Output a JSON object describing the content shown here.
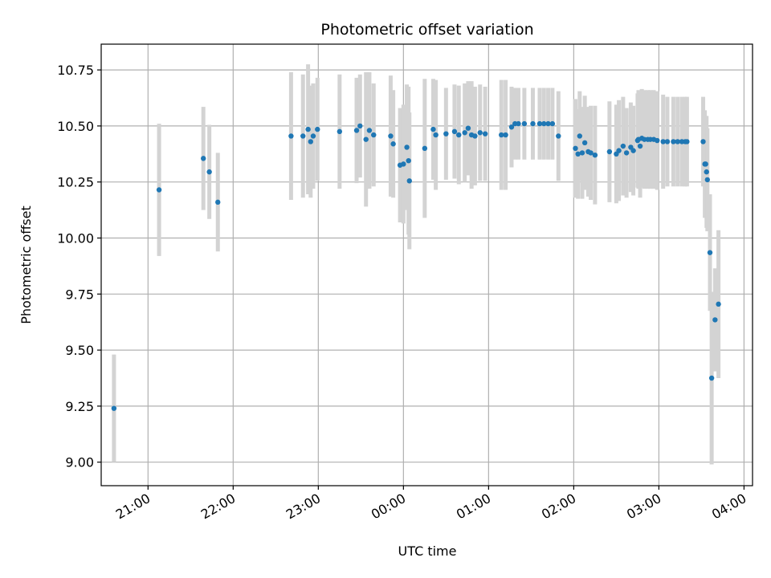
{
  "chart_data": {
    "type": "scatter",
    "title": "Photometric offset variation",
    "xlabel": "UTC time",
    "ylabel": "Photometric offset",
    "grid": true,
    "x_unit": "hours since 20:00 UTC",
    "xlim": [
      0.45,
      8.1
    ],
    "ylim": [
      8.895,
      10.865
    ],
    "x_ticks": [
      {
        "value": 1.0,
        "label": "21:00"
      },
      {
        "value": 2.0,
        "label": "22:00"
      },
      {
        "value": 3.0,
        "label": "23:00"
      },
      {
        "value": 4.0,
        "label": "00:00"
      },
      {
        "value": 5.0,
        "label": "01:00"
      },
      {
        "value": 6.0,
        "label": "02:00"
      },
      {
        "value": 7.0,
        "label": "03:00"
      },
      {
        "value": 8.0,
        "label": "04:00"
      }
    ],
    "y_ticks": [
      {
        "value": 9.0,
        "label": "9.00"
      },
      {
        "value": 9.25,
        "label": "9.25"
      },
      {
        "value": 9.5,
        "label": "9.50"
      },
      {
        "value": 9.75,
        "label": "9.75"
      },
      {
        "value": 10.0,
        "label": "10.00"
      },
      {
        "value": 10.25,
        "label": "10.25"
      },
      {
        "value": 10.5,
        "label": "10.50"
      },
      {
        "value": 10.75,
        "label": "10.75"
      }
    ],
    "colors": {
      "points": "#1f77b4",
      "errorbars": "#d3d3d3",
      "grid": "#b0b0b0"
    },
    "series": [
      {
        "name": "offset",
        "points": [
          [
            0.6,
            9.24,
            0.24
          ],
          [
            1.13,
            10.215,
            0.295
          ],
          [
            1.65,
            10.355,
            0.23
          ],
          [
            1.72,
            10.295,
            0.21
          ],
          [
            1.82,
            10.16,
            0.22
          ],
          [
            2.68,
            10.455,
            0.285
          ],
          [
            2.82,
            10.455,
            0.275
          ],
          [
            2.88,
            10.485,
            0.29
          ],
          [
            2.91,
            10.43,
            0.25
          ],
          [
            2.94,
            10.455,
            0.235
          ],
          [
            2.99,
            10.485,
            0.23
          ],
          [
            3.25,
            10.475,
            0.255
          ],
          [
            3.45,
            10.48,
            0.235
          ],
          [
            3.49,
            10.5,
            0.23
          ],
          [
            3.56,
            10.44,
            0.3
          ],
          [
            3.6,
            10.48,
            0.26
          ],
          [
            3.65,
            10.46,
            0.23
          ],
          [
            3.85,
            10.455,
            0.27
          ],
          [
            3.88,
            10.42,
            0.24
          ],
          [
            3.96,
            10.325,
            0.255
          ],
          [
            4.0,
            10.33,
            0.265
          ],
          [
            4.04,
            10.405,
            0.28
          ],
          [
            4.06,
            10.345,
            0.33
          ],
          [
            4.07,
            10.255,
            0.305
          ],
          [
            4.25,
            10.4,
            0.31
          ],
          [
            4.35,
            10.485,
            0.225
          ],
          [
            4.38,
            10.46,
            0.245
          ],
          [
            4.5,
            10.465,
            0.205
          ],
          [
            4.6,
            10.475,
            0.21
          ],
          [
            4.65,
            10.46,
            0.22
          ],
          [
            4.72,
            10.47,
            0.22
          ],
          [
            4.76,
            10.49,
            0.21
          ],
          [
            4.8,
            10.46,
            0.24
          ],
          [
            4.84,
            10.455,
            0.22
          ],
          [
            4.9,
            10.47,
            0.215
          ],
          [
            4.96,
            10.465,
            0.21
          ],
          [
            5.15,
            10.46,
            0.245
          ],
          [
            5.2,
            10.46,
            0.245
          ],
          [
            5.27,
            10.495,
            0.18
          ],
          [
            5.31,
            10.51,
            0.16
          ],
          [
            5.35,
            10.51,
            0.16
          ],
          [
            5.42,
            10.51,
            0.16
          ],
          [
            5.52,
            10.51,
            0.16
          ],
          [
            5.6,
            10.51,
            0.16
          ],
          [
            5.65,
            10.51,
            0.16
          ],
          [
            5.7,
            10.51,
            0.16
          ],
          [
            5.75,
            10.51,
            0.16
          ],
          [
            5.82,
            10.455,
            0.2
          ],
          [
            6.02,
            10.4,
            0.22
          ],
          [
            6.05,
            10.375,
            0.2
          ],
          [
            6.07,
            10.455,
            0.2
          ],
          [
            6.1,
            10.38,
            0.205
          ],
          [
            6.13,
            10.425,
            0.21
          ],
          [
            6.17,
            10.385,
            0.2
          ],
          [
            6.2,
            10.38,
            0.21
          ],
          [
            6.25,
            10.37,
            0.22
          ],
          [
            6.42,
            10.385,
            0.225
          ],
          [
            6.5,
            10.375,
            0.22
          ],
          [
            6.53,
            10.39,
            0.225
          ],
          [
            6.58,
            10.41,
            0.22
          ],
          [
            6.62,
            10.38,
            0.2
          ],
          [
            6.67,
            10.405,
            0.2
          ],
          [
            6.7,
            10.39,
            0.2
          ],
          [
            6.75,
            10.435,
            0.21
          ],
          [
            6.76,
            10.44,
            0.22
          ],
          [
            6.78,
            10.41,
            0.23
          ],
          [
            6.8,
            10.445,
            0.22
          ],
          [
            6.83,
            10.44,
            0.22
          ],
          [
            6.87,
            10.44,
            0.22
          ],
          [
            6.9,
            10.44,
            0.22
          ],
          [
            6.94,
            10.44,
            0.22
          ],
          [
            6.98,
            10.435,
            0.22
          ],
          [
            7.05,
            10.43,
            0.21
          ],
          [
            7.1,
            10.43,
            0.2
          ],
          [
            7.17,
            10.43,
            0.2
          ],
          [
            7.22,
            10.43,
            0.2
          ],
          [
            7.27,
            10.43,
            0.2
          ],
          [
            7.31,
            10.43,
            0.2
          ],
          [
            7.33,
            10.43,
            0.2
          ],
          [
            7.52,
            10.43,
            0.2
          ],
          [
            7.54,
            10.33,
            0.24
          ],
          [
            7.55,
            10.33,
            0.2
          ],
          [
            7.56,
            10.295,
            0.25
          ],
          [
            7.57,
            10.26,
            0.23
          ],
          [
            7.6,
            9.935,
            0.26
          ],
          [
            7.62,
            9.375,
            0.385
          ],
          [
            7.66,
            9.635,
            0.23
          ],
          [
            7.7,
            9.705,
            0.33
          ]
        ]
      }
    ]
  }
}
